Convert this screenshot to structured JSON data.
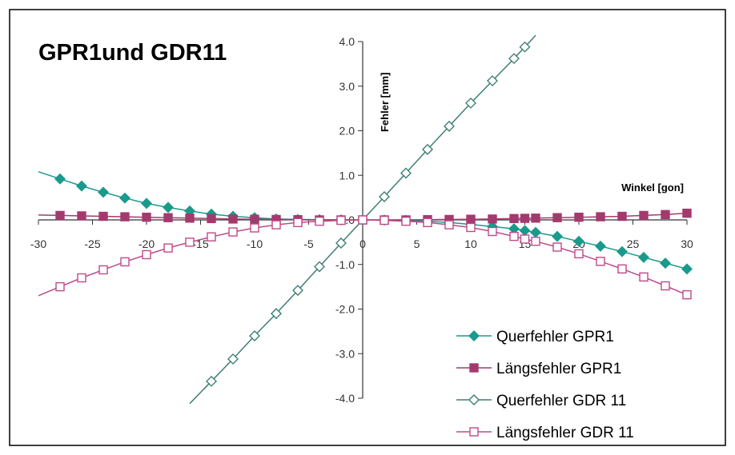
{
  "chart_data": {
    "type": "line",
    "title": "GPR1und GDR11",
    "xlabel": "Winkel [gon]",
    "ylabel": "Fehler [mm]",
    "xlim": [
      -30,
      30
    ],
    "ylim": [
      -4.0,
      4.0
    ],
    "x_ticks": [
      "-30",
      "-25",
      "-20",
      "-15",
      "-10",
      "-5",
      "0",
      "5",
      "10",
      "15",
      "20",
      "25",
      "30"
    ],
    "y_ticks": [
      "4.0",
      "3.0",
      "2.0",
      "1.0",
      "0.0",
      "-1.0",
      "-2.0",
      "-3.0",
      "-4.0"
    ],
    "legend_position": "bottom-right",
    "grid": false,
    "colors": {
      "teal": "#1a9a8c",
      "magenta": "#a33a6e",
      "darkteal": "#3d7e74",
      "pink": "#c04a8a"
    },
    "series": [
      {
        "name": "Querfehler GPR1",
        "marker": "diamond-filled",
        "color": "#1a9a8c",
        "x": [
          -28,
          -26,
          -24,
          -22,
          -20,
          -18,
          -16,
          -14,
          -12,
          -10,
          -8,
          -6,
          -4,
          -2,
          0,
          2,
          4,
          6,
          8,
          10,
          12,
          14,
          15,
          16,
          18,
          20,
          22,
          24,
          26,
          28,
          30
        ],
        "y": [
          0.92,
          0.76,
          0.62,
          0.49,
          0.37,
          0.28,
          0.2,
          0.13,
          0.08,
          0.05,
          0.02,
          0.01,
          0.005,
          0.0,
          0.0,
          -0.005,
          -0.01,
          -0.03,
          -0.06,
          -0.1,
          -0.15,
          -0.2,
          -0.24,
          -0.28,
          -0.37,
          -0.48,
          -0.59,
          -0.71,
          -0.84,
          -0.97,
          -1.1
        ]
      },
      {
        "name": "Längsfehler GPR1",
        "marker": "square-filled",
        "color": "#a33a6e",
        "x": [
          -28,
          -26,
          -24,
          -22,
          -20,
          -18,
          -16,
          -14,
          -12,
          -10,
          -8,
          -6,
          -4,
          -2,
          0,
          2,
          4,
          6,
          8,
          10,
          12,
          14,
          15,
          16,
          18,
          20,
          22,
          24,
          26,
          28,
          30
        ],
        "y": [
          0.1,
          0.09,
          0.08,
          0.07,
          0.06,
          0.05,
          0.04,
          0.03,
          0.02,
          0.015,
          0.01,
          0.005,
          0.0,
          0.0,
          0.0,
          0.0,
          0.0,
          0.005,
          0.01,
          0.015,
          0.02,
          0.03,
          0.035,
          0.04,
          0.05,
          0.06,
          0.07,
          0.08,
          0.1,
          0.12,
          0.15
        ]
      },
      {
        "name": "Querfehler GDR 11",
        "marker": "diamond-open",
        "color": "#3d7e74",
        "x": [
          -14,
          -12,
          -10,
          -8,
          -6,
          -4,
          -2,
          0,
          2,
          4,
          6,
          8,
          10,
          12,
          14,
          15
        ],
        "y": [
          -3.62,
          -3.12,
          -2.6,
          -2.1,
          -1.58,
          -1.05,
          -0.52,
          0.0,
          0.52,
          1.05,
          1.58,
          2.1,
          2.62,
          3.12,
          3.62,
          3.88
        ]
      },
      {
        "name": "Längsfehler GDR 11",
        "marker": "square-open",
        "color": "#c04a8a",
        "x": [
          -28,
          -26,
          -24,
          -22,
          -20,
          -18,
          -16,
          -14,
          -12,
          -10,
          -8,
          -6,
          -4,
          -2,
          0,
          2,
          4,
          6,
          8,
          10,
          12,
          14,
          15,
          16,
          18,
          20,
          22,
          24,
          26,
          28,
          30
        ],
        "y": [
          -1.5,
          -1.3,
          -1.12,
          -0.94,
          -0.78,
          -0.63,
          -0.5,
          -0.38,
          -0.27,
          -0.18,
          -0.11,
          -0.06,
          -0.03,
          -0.01,
          0.0,
          -0.01,
          -0.03,
          -0.06,
          -0.11,
          -0.17,
          -0.26,
          -0.37,
          -0.43,
          -0.48,
          -0.61,
          -0.76,
          -0.93,
          -1.1,
          -1.28,
          -1.48,
          -1.68
        ]
      }
    ]
  }
}
